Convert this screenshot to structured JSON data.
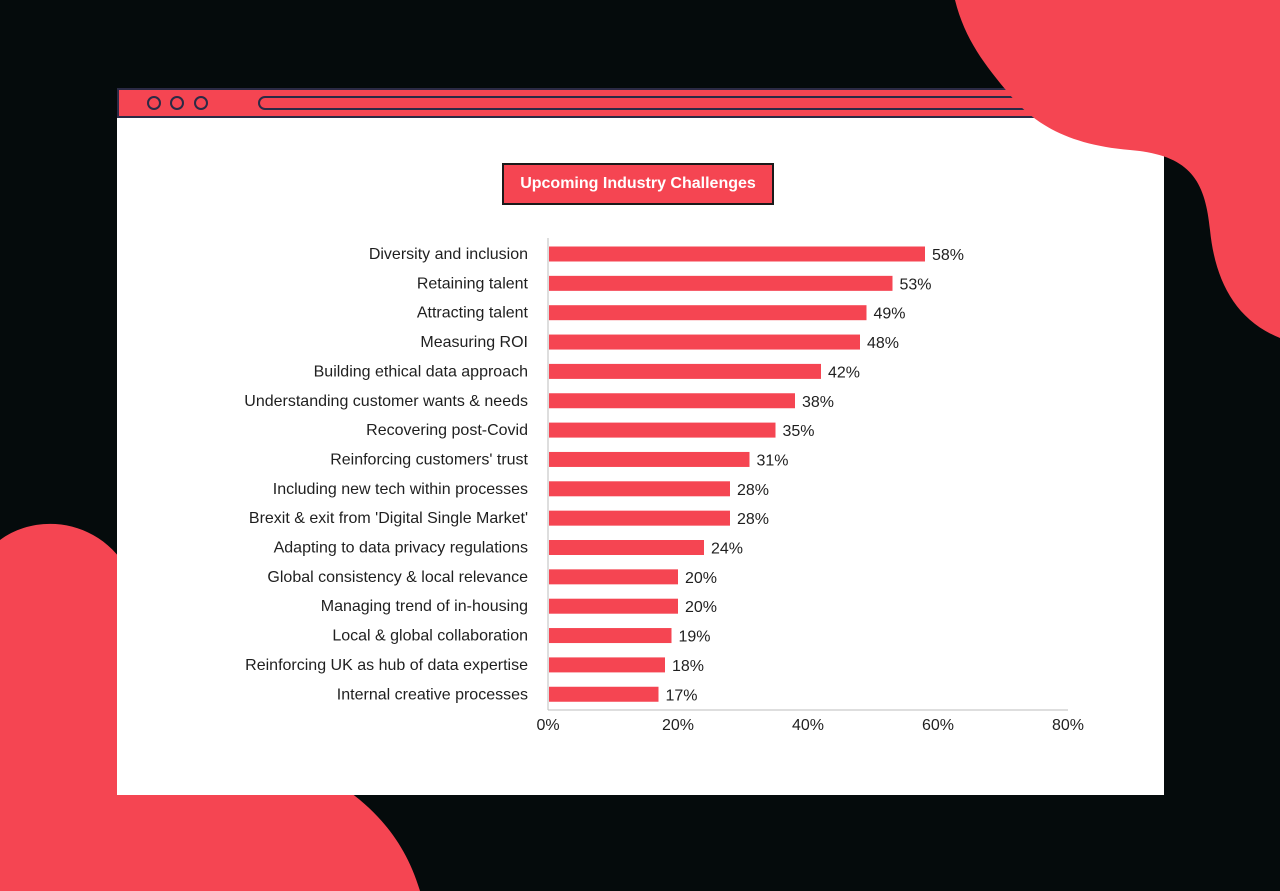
{
  "colors": {
    "accent": "#f54552",
    "background": "#050b0c",
    "panel": "#ffffff",
    "text": "#1f1f1f"
  },
  "window": {
    "controls": [
      "dot-icon",
      "dot-icon",
      "dot-icon"
    ]
  },
  "chart_data": {
    "type": "bar",
    "orientation": "horizontal",
    "title": "Upcoming Industry Challenges",
    "xlabel": "",
    "ylabel": "",
    "xlim": [
      0,
      80
    ],
    "x_ticks": [
      "0%",
      "20%",
      "40%",
      "60%",
      "80%"
    ],
    "x_tick_values": [
      0,
      20,
      40,
      60,
      80
    ],
    "grid": false,
    "categories": [
      "Diversity and inclusion",
      "Retaining talent",
      "Attracting talent",
      "Measuring ROI",
      "Building ethical data approach",
      "Understanding customer wants & needs",
      "Recovering post-Covid",
      "Reinforcing customers' trust",
      "Including new tech within processes",
      "Brexit & exit from 'Digital Single Market'",
      "Adapting to data privacy regulations",
      "Global consistency & local relevance",
      "Managing trend of in-housing",
      "Local & global collaboration",
      "Reinforcing UK as hub of data expertise",
      "Internal creative processes"
    ],
    "values": [
      58,
      53,
      49,
      48,
      42,
      38,
      35,
      31,
      28,
      28,
      24,
      20,
      20,
      19,
      18,
      17
    ],
    "value_labels": [
      "58%",
      "53%",
      "49%",
      "48%",
      "42%",
      "38%",
      "35%",
      "31%",
      "28%",
      "28%",
      "24%",
      "20%",
      "20%",
      "19%",
      "18%",
      "17%"
    ]
  }
}
